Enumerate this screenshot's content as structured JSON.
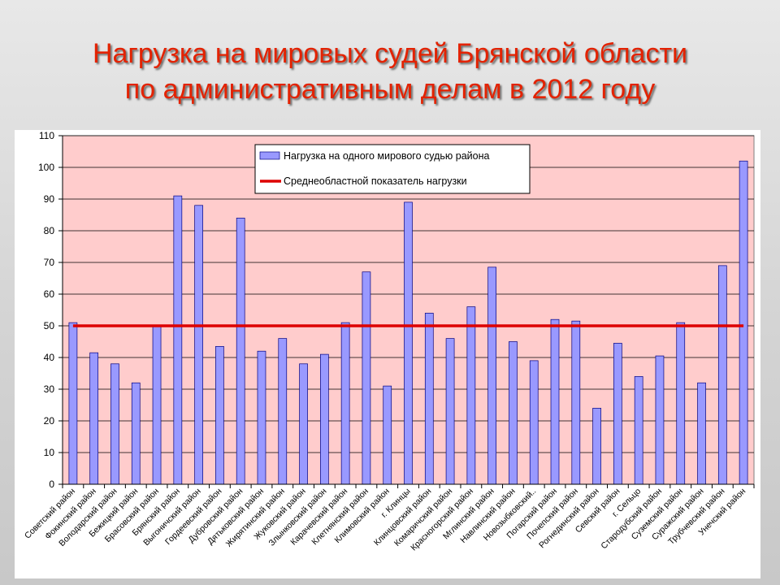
{
  "title": {
    "line1": "Нагрузка на мировых судей Брянской области",
    "line2": "по административным делам в 2012 году"
  },
  "colors": {
    "title": "#e32200",
    "plot_background": "#ffcccc",
    "bar_fill": "#9999ff",
    "bar_stroke": "#000080",
    "average_line": "#dd0000"
  },
  "chart_data": {
    "type": "bar",
    "title": "",
    "xlabel": "",
    "ylabel": "",
    "ylim": [
      0,
      110
    ],
    "yticks": [
      0,
      10,
      20,
      30,
      40,
      50,
      60,
      70,
      80,
      90,
      100,
      110
    ],
    "grid": true,
    "legend_position": "top-center",
    "categories": [
      "Советский район",
      "Фокинский район",
      "Володарский район",
      "Бежицкий район",
      "Брасовский район",
      "Брянский район",
      "Выгоничский район",
      "Гордеевский район",
      "Дубровский район",
      "Дятьковский район",
      "Жирятинский район",
      "Жуковский район",
      "Злынковский район",
      "Карачевский район",
      "Клетнянский район",
      "Климовский район",
      "г. Клинцы",
      "Клинцовский район",
      "Комаричский район",
      "Красногорский район",
      "Мглинский район",
      "Навлинский район",
      "Новозыбковский..",
      "Погарский район",
      "Почепский район",
      "Рогнединский район",
      "Севский район",
      "г. Сельцо",
      "Стародубский район",
      "Суземский район",
      "Суражский район",
      "Трубчевский район",
      "Унечский район"
    ],
    "series": [
      {
        "name": "Нагрузка на одного мирового судью района",
        "type": "bar",
        "values": [
          51,
          41.5,
          38,
          32,
          50,
          91,
          88,
          43.5,
          84,
          42,
          46,
          38,
          41,
          51,
          67,
          31,
          89,
          54,
          46,
          56,
          68.5,
          45,
          39,
          52,
          51.5,
          24,
          44.5,
          34,
          40.5,
          51,
          32,
          69,
          102
        ]
      },
      {
        "name": "Среднеобластной показатель нагрузки",
        "type": "line",
        "value": 50
      }
    ]
  }
}
